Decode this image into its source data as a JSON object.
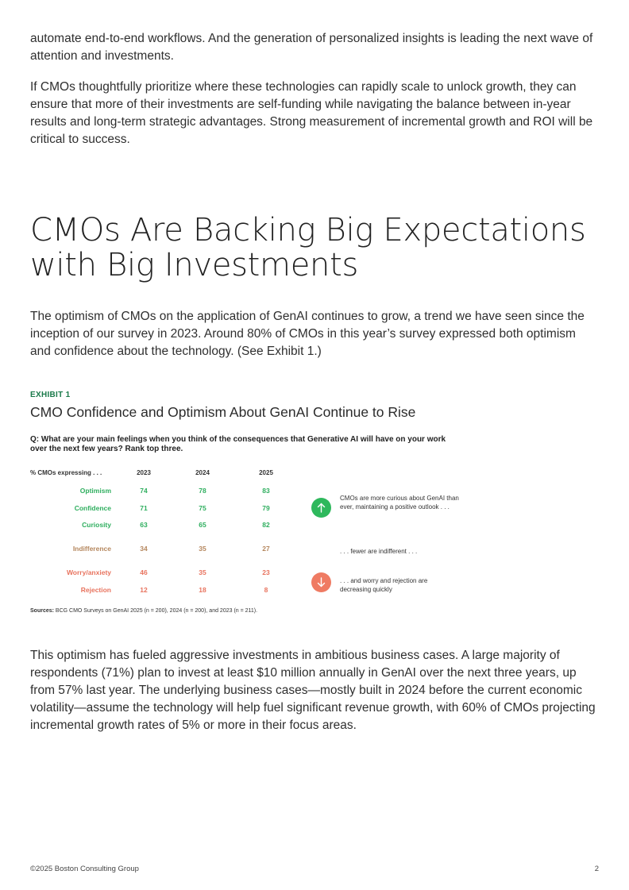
{
  "body": {
    "p1": "automate end-to-end workflows. And the generation of personalized insights is leading the next wave of attention and investments.",
    "p2": "If CMOs thoughtfully prioritize where these technologies can rapidly scale to unlock growth, they can ensure that more of their investments are self-funding while navigating the balance between in-year results and long-term strategic advantages. Strong measurement of incremental growth and ROI will be critical to success.",
    "heading": "CMOs Are Backing Big Expectations with Big Investments",
    "p3": "The optimism of CMOs on the application of GenAI continues to grow, a trend we have seen since the inception of our survey in 2023. Around 80% of CMOs in this year’s survey expressed both optimism and confidence about the technology. (See Exhibit 1.)",
    "p4": "This optimism has fueled aggressive investments in ambitious business cases. A large majority of respondents (71%) plan to invest at least $10 million annually in GenAI over the next three years, up from 57% last year. The underlying business cases—mostly built in 2024 before the current economic volatility—assume the technology will help fuel significant revenue growth, with 60% of CMOs projecting incremental growth rates of 5% or more in their focus areas."
  },
  "exhibit": {
    "tag": "EXHIBIT 1",
    "title": "CMO Confidence and Optimism About GenAI Continue to Rise",
    "question": "Q: What are your main feelings when you think of the consequences that Generative AI will have on your work over the next few years? Rank top three.",
    "header_label": "% CMOs expressing . . .",
    "years": [
      "2023",
      "2024",
      "2025"
    ],
    "rows": [
      {
        "label": "Optimism",
        "values": [
          "74",
          "78",
          "83"
        ],
        "color": "#2eae5e"
      },
      {
        "label": "Confidence",
        "values": [
          "71",
          "75",
          "79"
        ],
        "color": "#2eae5e"
      },
      {
        "label": "Curiosity",
        "values": [
          "63",
          "65",
          "82"
        ],
        "color": "#2eae5e"
      },
      {
        "label": "Indifference",
        "values": [
          "34",
          "35",
          "27"
        ],
        "color": "#b5875e"
      },
      {
        "label": "Worry/anxiety",
        "values": [
          "46",
          "35",
          "23"
        ],
        "color": "#e8735e"
      },
      {
        "label": "Rejection",
        "values": [
          "12",
          "18",
          "8"
        ],
        "color": "#e8735e"
      }
    ],
    "notes": {
      "up": "CMOs are more curious about GenAI than ever, maintaining a positive outlook . . .",
      "mid": ". . . fewer are indifferent . . .",
      "down": ". . . and worry and rejection are decreasing quickly"
    },
    "icons": {
      "up": "arrow-up-icon",
      "down": "arrow-down-icon"
    },
    "sources_label": "Sources:",
    "sources_text": "BCG CMO Surveys on GenAI 2025 (n = 200), 2024 (n = 200), and 2023 (n = 211)."
  },
  "footer": {
    "copyright": "©2025 Boston Consulting Group",
    "page_number": "2"
  }
}
